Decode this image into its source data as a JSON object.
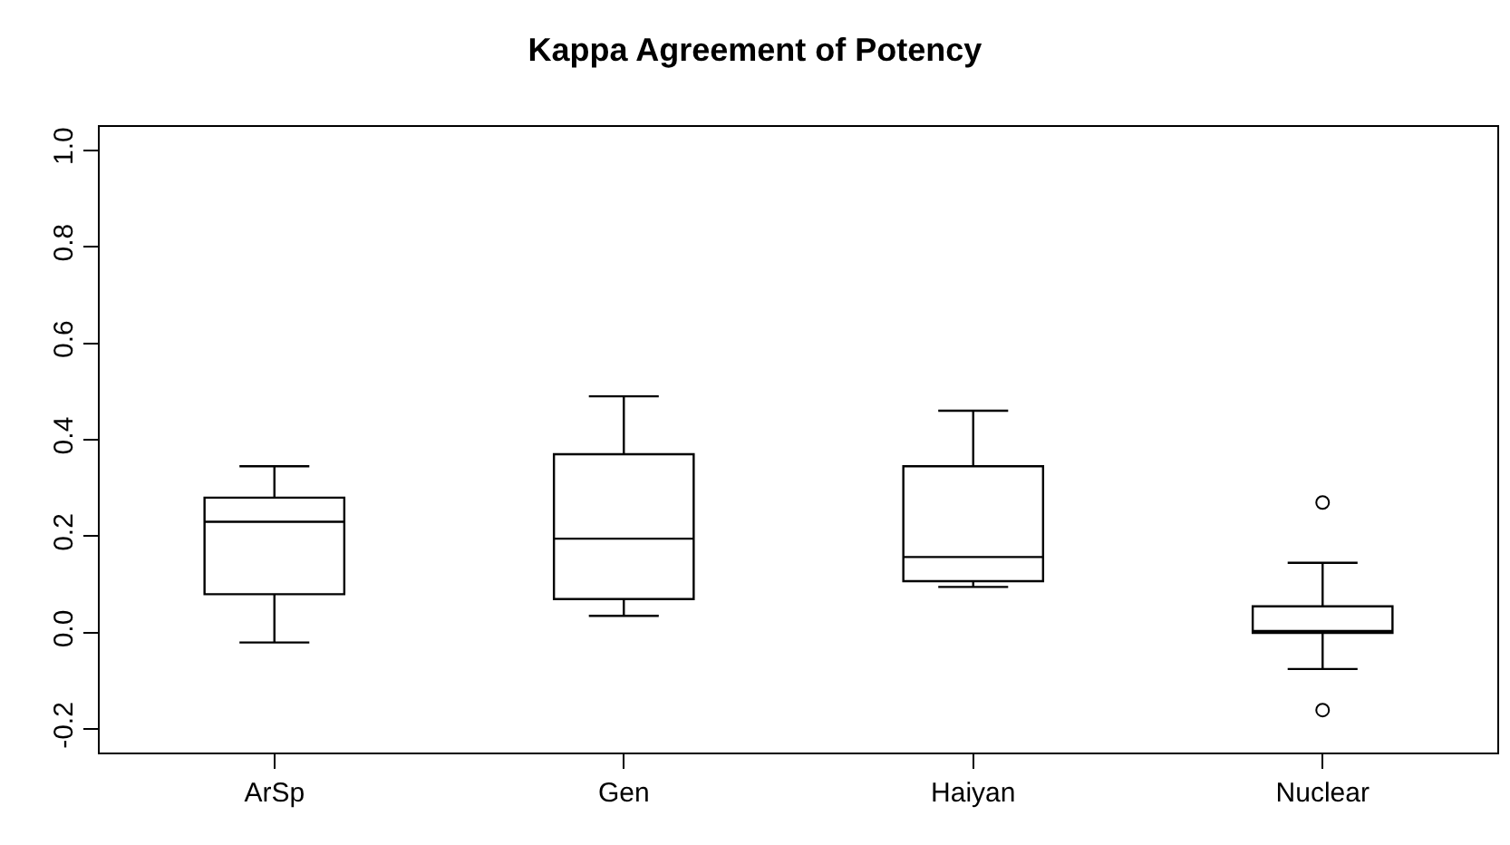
{
  "chart_data": {
    "type": "box",
    "title": "Kappa Agreement of Potency",
    "categories": [
      "ArSp",
      "Gen",
      "Haiyan",
      "Nuclear"
    ],
    "boxes": [
      {
        "low": -0.02,
        "q1": 0.08,
        "median": 0.23,
        "q3": 0.28,
        "high": 0.345
      },
      {
        "low": 0.035,
        "q1": 0.07,
        "median": 0.195,
        "q3": 0.37,
        "high": 0.49
      },
      {
        "low": 0.095,
        "q1": 0.107,
        "median": 0.157,
        "q3": 0.345,
        "high": 0.46
      },
      {
        "low": -0.075,
        "q1": 0.0,
        "median": 0.0,
        "q3": 0.055,
        "high": 0.145,
        "outliers": [
          0.27,
          -0.16
        ]
      }
    ],
    "ylim": [
      -0.248,
      1.048
    ],
    "yticks": [
      {
        "value": -0.2,
        "label": "-0.2"
      },
      {
        "value": 0,
        "label": "0.0"
      },
      {
        "value": 0.2,
        "label": "0.2"
      },
      {
        "value": 0.4,
        "label": "0.4"
      },
      {
        "value": 0.6,
        "label": "0.6"
      },
      {
        "value": 0.8,
        "label": "0.8"
      },
      {
        "value": 1,
        "label": "1.0"
      }
    ],
    "grid": false,
    "marker": "circle"
  }
}
